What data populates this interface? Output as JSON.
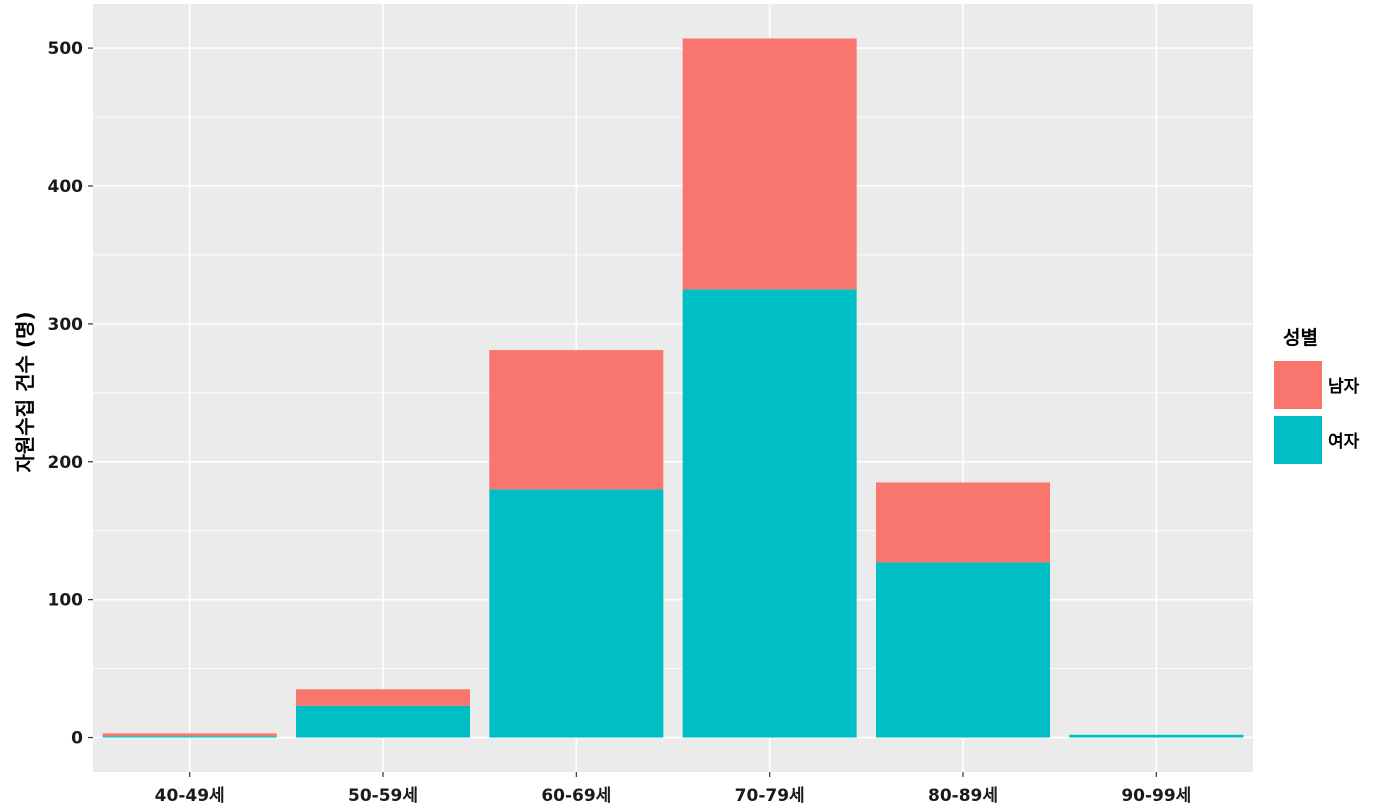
{
  "chart_data": {
    "type": "bar",
    "stacked": true,
    "categories": [
      "40-49세",
      "50-59세",
      "60-69세",
      "70-79세",
      "80-89세",
      "90-99세"
    ],
    "series": [
      {
        "name": "남자",
        "values": [
          2,
          12,
          101,
          182,
          58,
          0
        ],
        "color": "#F8766D"
      },
      {
        "name": "여자",
        "values": [
          1,
          23,
          180,
          325,
          127,
          2
        ],
        "color": "#00BFC4"
      }
    ],
    "xlabel": "",
    "ylabel": "자원수집 건수 (명)",
    "ylim": [
      -25,
      532
    ],
    "yticks": [
      0,
      100,
      200,
      300,
      400,
      500
    ],
    "grid": true,
    "panel_background": "#EBEBEB",
    "legend": {
      "title": "성별",
      "placement": "right"
    }
  }
}
